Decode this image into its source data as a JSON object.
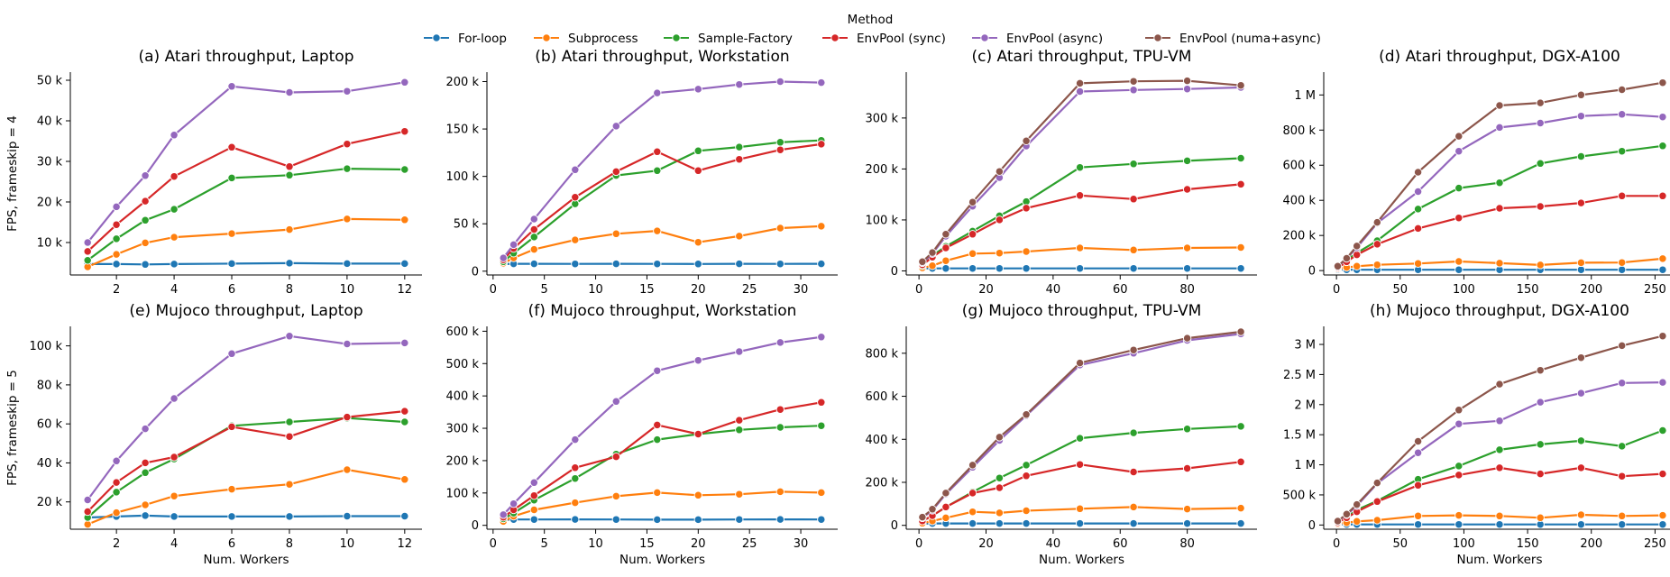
{
  "legend": {
    "title": "Method",
    "entries": [
      {
        "name": "For-loop",
        "color": "#1f77b4"
      },
      {
        "name": "Subprocess",
        "color": "#ff7f0e"
      },
      {
        "name": "Sample-Factory",
        "color": "#2ca02c"
      },
      {
        "name": "EnvPool (sync)",
        "color": "#d62728"
      },
      {
        "name": "EnvPool (async)",
        "color": "#9467bd"
      },
      {
        "name": "EnvPool (numa+async)",
        "color": "#8c564b"
      }
    ]
  },
  "chart_data": [
    {
      "type": "line",
      "title": "(a) Atari throughput, Laptop",
      "xlabel": "",
      "ylabel": "FPS, frameskip = 4",
      "xlim": [
        0.4,
        12.6
      ],
      "ylim": [
        2000,
        52000
      ],
      "xticks": [
        2,
        4,
        6,
        8,
        10,
        12
      ],
      "xtick_labels": [
        "2",
        "4",
        "6",
        "8",
        "10",
        "12"
      ],
      "yticks": [
        10000,
        20000,
        30000,
        40000,
        50000
      ],
      "ytick_labels": [
        "10 k",
        "20 k",
        "30 k",
        "40 k",
        "50 k"
      ],
      "x": [
        1,
        2,
        3,
        4,
        6,
        8,
        10,
        12
      ],
      "series": [
        {
          "name": "For-loop",
          "values": [
            4700,
            4700,
            4600,
            4700,
            4800,
            4900,
            4800,
            4800
          ]
        },
        {
          "name": "Subprocess",
          "values": [
            4000,
            7100,
            9900,
            11300,
            12200,
            13200,
            15800,
            15600
          ]
        },
        {
          "name": "Sample-Factory",
          "values": [
            5600,
            10900,
            15500,
            18200,
            25900,
            26600,
            28200,
            28000
          ]
        },
        {
          "name": "EnvPool (sync)",
          "values": [
            7800,
            14400,
            20200,
            26300,
            33500,
            28700,
            34300,
            37400
          ]
        },
        {
          "name": "EnvPool (async)",
          "values": [
            10000,
            18800,
            26500,
            36500,
            48500,
            47000,
            47300,
            49500
          ]
        }
      ]
    },
    {
      "type": "line",
      "title": "(b) Atari throughput, Workstation",
      "xlabel": "",
      "ylabel": "",
      "xlim": [
        -0.6,
        33.6
      ],
      "ylim": [
        -4000,
        210000
      ],
      "xticks": [
        0,
        5,
        10,
        15,
        20,
        25,
        30
      ],
      "xtick_labels": [
        "0",
        "5",
        "10",
        "15",
        "20",
        "25",
        "30"
      ],
      "yticks": [
        0,
        50000,
        100000,
        150000,
        200000
      ],
      "ytick_labels": [
        "0",
        "50 k",
        "100 k",
        "150 k",
        "200 k"
      ],
      "x": [
        1,
        2,
        4,
        8,
        12,
        16,
        20,
        24,
        28,
        32
      ],
      "series": [
        {
          "name": "For-loop",
          "values": [
            7500,
            7800,
            7800,
            7700,
            7800,
            7700,
            7600,
            7800,
            7700,
            7800
          ]
        },
        {
          "name": "Subprocess",
          "values": [
            8500,
            14000,
            23000,
            33000,
            39500,
            42500,
            30500,
            37000,
            45500,
            47500
          ]
        },
        {
          "name": "Sample-Factory",
          "values": [
            10000,
            19000,
            36000,
            71000,
            101000,
            106000,
            127000,
            131000,
            136000,
            138000
          ]
        },
        {
          "name": "EnvPool (sync)",
          "values": [
            12000,
            24000,
            44000,
            78000,
            105000,
            126000,
            106000,
            118000,
            128000,
            134000
          ]
        },
        {
          "name": "EnvPool (async)",
          "values": [
            14000,
            28000,
            55000,
            107000,
            153000,
            188000,
            192000,
            197000,
            200000,
            199000
          ]
        }
      ]
    },
    {
      "type": "line",
      "title": "(c) Atari throughput, TPU-VM",
      "xlabel": "",
      "ylabel": "",
      "xlim": [
        -3.8,
        100.8
      ],
      "ylim": [
        -8000,
        390000
      ],
      "xticks": [
        0,
        20,
        40,
        60,
        80
      ],
      "xtick_labels": [
        "0",
        "20",
        "40",
        "60",
        "80"
      ],
      "yticks": [
        0,
        100000,
        200000,
        300000
      ],
      "ytick_labels": [
        "0",
        "100 k",
        "200 k",
        "300 k"
      ],
      "x": [
        1,
        4,
        8,
        16,
        24,
        32,
        48,
        64,
        80,
        96
      ],
      "series": [
        {
          "name": "For-loop",
          "values": [
            5000,
            5000,
            5000,
            5000,
            5000,
            5000,
            5000,
            5000,
            5000,
            5000
          ]
        },
        {
          "name": "Subprocess",
          "values": [
            6000,
            10000,
            20000,
            34000,
            35000,
            38000,
            45000,
            41000,
            45000,
            46000
          ]
        },
        {
          "name": "Sample-Factory",
          "values": [
            10000,
            30000,
            48000,
            78000,
            108000,
            136000,
            203000,
            210000,
            216000,
            221000
          ]
        },
        {
          "name": "EnvPool (sync)",
          "values": [
            12000,
            27000,
            45000,
            72000,
            100000,
            123000,
            148000,
            141000,
            160000,
            170000
          ]
        },
        {
          "name": "EnvPool (async)",
          "values": [
            16000,
            34000,
            68000,
            127000,
            183000,
            245000,
            352000,
            355000,
            357000,
            360000
          ]
        },
        {
          "name": "EnvPool (numa+async)",
          "values": [
            18000,
            36000,
            72000,
            135000,
            195000,
            255000,
            368000,
            372000,
            373000,
            364000
          ]
        }
      ]
    },
    {
      "type": "line",
      "title": "(d) Atari throughput, DGX-A100",
      "xlabel": "",
      "ylabel": "",
      "xlim": [
        -10,
        266
      ],
      "ylim": [
        -25000,
        1130000
      ],
      "xticks": [
        0,
        50,
        100,
        150,
        200,
        250
      ],
      "xtick_labels": [
        "0",
        "50",
        "100",
        "150",
        "200",
        "250"
      ],
      "yticks": [
        0,
        200000,
        400000,
        600000,
        800000,
        1000000
      ],
      "ytick_labels": [
        "0",
        "200 k",
        "400 k",
        "600 k",
        "800 k",
        "1 M"
      ],
      "x": [
        1,
        8,
        16,
        32,
        64,
        96,
        128,
        160,
        192,
        224,
        256
      ],
      "series": [
        {
          "name": "For-loop",
          "values": [
            5000,
            5000,
            5000,
            5000,
            5000,
            5000,
            5000,
            5000,
            5000,
            5000,
            5000
          ]
        },
        {
          "name": "Subprocess",
          "values": [
            10000,
            18000,
            25000,
            33000,
            40000,
            52000,
            42000,
            32000,
            45000,
            46000,
            68000
          ]
        },
        {
          "name": "Sample-Factory",
          "values": [
            15000,
            60000,
            100000,
            170000,
            350000,
            470000,
            500000,
            610000,
            650000,
            680000,
            710000
          ]
        },
        {
          "name": "EnvPool (sync)",
          "values": [
            15000,
            50000,
            90000,
            150000,
            240000,
            300000,
            355000,
            365000,
            385000,
            425000,
            425000
          ]
        },
        {
          "name": "EnvPool (async)",
          "values": [
            20000,
            70000,
            130000,
            270000,
            450000,
            680000,
            815000,
            840000,
            880000,
            890000,
            875000
          ]
        },
        {
          "name": "EnvPool (numa+async)",
          "values": [
            25000,
            70000,
            140000,
            275000,
            560000,
            765000,
            940000,
            955000,
            1000000,
            1030000,
            1070000
          ]
        }
      ]
    },
    {
      "type": "line",
      "title": "(e) Mujoco throughput, Laptop",
      "xlabel": "Num. Workers",
      "ylabel": "FPS, frameskip = 5",
      "xlim": [
        0.4,
        12.6
      ],
      "ylim": [
        6000,
        110000
      ],
      "xticks": [
        2,
        4,
        6,
        8,
        10,
        12
      ],
      "xtick_labels": [
        "2",
        "4",
        "6",
        "8",
        "10",
        "12"
      ],
      "yticks": [
        20000,
        40000,
        60000,
        80000,
        100000
      ],
      "ytick_labels": [
        "20 k",
        "40 k",
        "60 k",
        "80 k",
        "100 k"
      ],
      "x": [
        1,
        2,
        3,
        4,
        6,
        8,
        10,
        12
      ],
      "series": [
        {
          "name": "For-loop",
          "values": [
            12000,
            12500,
            13000,
            12500,
            12500,
            12500,
            12700,
            12700
          ]
        },
        {
          "name": "Subprocess",
          "values": [
            8500,
            14500,
            18500,
            23000,
            26500,
            29000,
            36500,
            31500
          ]
        },
        {
          "name": "Sample-Factory",
          "values": [
            12000,
            25000,
            35000,
            42000,
            59000,
            61000,
            63000,
            61000
          ]
        },
        {
          "name": "EnvPool (sync)",
          "values": [
            15000,
            30000,
            40000,
            43000,
            58500,
            53500,
            63500,
            66500
          ]
        },
        {
          "name": "EnvPool (async)",
          "values": [
            21000,
            41000,
            57500,
            73000,
            96000,
            105000,
            101000,
            101500
          ]
        }
      ]
    },
    {
      "type": "line",
      "title": "(f) Mujoco throughput, Workstation",
      "xlabel": "Num. Workers",
      "ylabel": "",
      "xlim": [
        -0.6,
        33.6
      ],
      "ylim": [
        -12000,
        615000
      ],
      "xticks": [
        0,
        5,
        10,
        15,
        20,
        25,
        30
      ],
      "xtick_labels": [
        "0",
        "5",
        "10",
        "15",
        "20",
        "25",
        "30"
      ],
      "yticks": [
        0,
        100000,
        200000,
        300000,
        400000,
        500000,
        600000
      ],
      "ytick_labels": [
        "0",
        "100 k",
        "200 k",
        "300 k",
        "400 k",
        "500 k",
        "600 k"
      ],
      "x": [
        1,
        2,
        4,
        8,
        12,
        16,
        20,
        24,
        28,
        32
      ],
      "series": [
        {
          "name": "For-loop",
          "values": [
            17000,
            18000,
            18000,
            18500,
            18000,
            17500,
            17500,
            18000,
            18500,
            18000
          ]
        },
        {
          "name": "Subprocess",
          "values": [
            12000,
            28000,
            48000,
            70000,
            90000,
            101000,
            93000,
            96000,
            104000,
            101000
          ]
        },
        {
          "name": "Sample-Factory",
          "values": [
            20000,
            38000,
            78000,
            145000,
            220000,
            265000,
            282000,
            295000,
            303000,
            308000
          ]
        },
        {
          "name": "EnvPool (sync)",
          "values": [
            25000,
            48000,
            92000,
            178000,
            212000,
            310000,
            282000,
            325000,
            358000,
            380000
          ]
        },
        {
          "name": "EnvPool (async)",
          "values": [
            33000,
            67000,
            132000,
            265000,
            383000,
            478000,
            510000,
            537000,
            565000,
            582000
          ]
        }
      ]
    },
    {
      "type": "line",
      "title": "(g) Mujoco throughput, TPU-VM",
      "xlabel": "Num. Workers",
      "ylabel": "",
      "xlim": [
        -3.8,
        100.8
      ],
      "ylim": [
        -18000,
        925000
      ],
      "xticks": [
        0,
        20,
        40,
        60,
        80
      ],
      "xtick_labels": [
        "0",
        "20",
        "40",
        "60",
        "80"
      ],
      "yticks": [
        0,
        200000,
        400000,
        600000,
        800000
      ],
      "ytick_labels": [
        "0",
        "200 k",
        "400 k",
        "600 k",
        "800 k"
      ],
      "x": [
        1,
        4,
        8,
        16,
        24,
        32,
        48,
        64,
        80,
        96
      ],
      "series": [
        {
          "name": "For-loop",
          "values": [
            8000,
            9000,
            9000,
            9000,
            9000,
            9000,
            9000,
            9000,
            9000,
            9000
          ]
        },
        {
          "name": "Subprocess",
          "values": [
            10000,
            20000,
            35000,
            63000,
            58000,
            68000,
            77000,
            85000,
            76000,
            80000
          ]
        },
        {
          "name": "Sample-Factory",
          "values": [
            20000,
            45000,
            85000,
            155000,
            220000,
            280000,
            405000,
            430000,
            448000,
            460000
          ]
        },
        {
          "name": "EnvPool (sync)",
          "values": [
            20000,
            45000,
            85000,
            150000,
            175000,
            230000,
            283000,
            248000,
            265000,
            295000
          ]
        },
        {
          "name": "EnvPool (async)",
          "values": [
            35000,
            70000,
            145000,
            270000,
            395000,
            510000,
            745000,
            800000,
            860000,
            890000
          ]
        },
        {
          "name": "EnvPool (numa+async)",
          "values": [
            38000,
            75000,
            150000,
            280000,
            410000,
            515000,
            755000,
            815000,
            870000,
            900000
          ]
        }
      ]
    },
    {
      "type": "line",
      "title": "(h) Mujoco throughput, DGX-A100",
      "xlabel": "Num. Workers",
      "ylabel": "",
      "xlim": [
        -10,
        266
      ],
      "ylim": [
        -70000,
        3300000
      ],
      "xticks": [
        0,
        50,
        100,
        150,
        200,
        250
      ],
      "xtick_labels": [
        "0",
        "50",
        "100",
        "150",
        "200",
        "250"
      ],
      "yticks": [
        0,
        500000,
        1000000,
        1500000,
        2000000,
        2500000,
        3000000
      ],
      "ytick_labels": [
        "0",
        "500 k",
        "1 M",
        "1.5 M",
        "2 M",
        "2.5 M",
        "3 M"
      ],
      "x": [
        1,
        8,
        16,
        32,
        64,
        96,
        128,
        160,
        192,
        224,
        256
      ],
      "series": [
        {
          "name": "For-loop",
          "values": [
            10000,
            10000,
            10000,
            10000,
            10000,
            10000,
            10000,
            10000,
            10000,
            10000,
            10000
          ]
        },
        {
          "name": "Subprocess",
          "values": [
            20000,
            40000,
            60000,
            80000,
            150000,
            160000,
            150000,
            120000,
            170000,
            150000,
            160000
          ]
        },
        {
          "name": "Sample-Factory",
          "values": [
            40000,
            130000,
            250000,
            400000,
            760000,
            980000,
            1250000,
            1340000,
            1400000,
            1310000,
            1570000
          ]
        },
        {
          "name": "EnvPool (sync)",
          "values": [
            40000,
            120000,
            220000,
            390000,
            660000,
            830000,
            950000,
            850000,
            950000,
            810000,
            850000
          ]
        },
        {
          "name": "EnvPool (async)",
          "values": [
            60000,
            170000,
            320000,
            690000,
            1200000,
            1680000,
            1730000,
            2040000,
            2190000,
            2360000,
            2370000
          ]
        },
        {
          "name": "EnvPool (numa+async)",
          "values": [
            65000,
            180000,
            340000,
            700000,
            1390000,
            1910000,
            2340000,
            2570000,
            2780000,
            2980000,
            3140000
          ]
        }
      ]
    }
  ]
}
